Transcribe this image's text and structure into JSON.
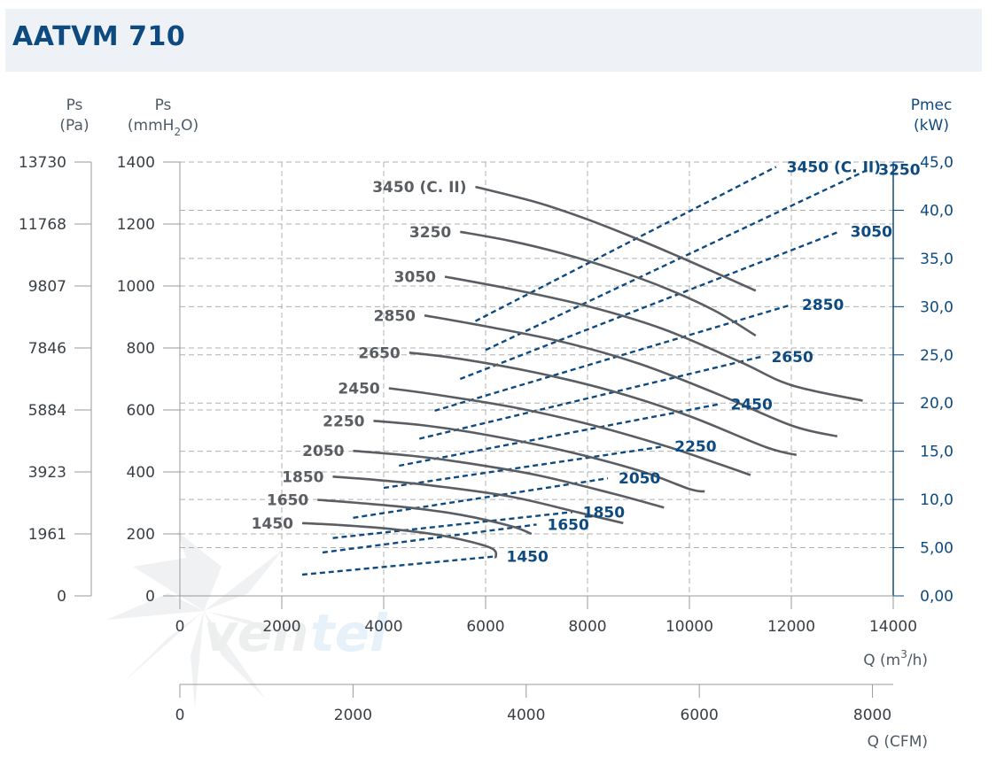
{
  "header": {
    "title": "AATVM 710"
  },
  "axes": {
    "ps_pa_label": "Ps",
    "ps_pa_unit": "(Pa)",
    "ps_mm_label": "Ps",
    "ps_mm_unit_pre": "(mmH",
    "ps_mm_unit_sub": "2",
    "ps_mm_unit_post": "O)",
    "pmec_label": "Pmec",
    "pmec_unit": "(kW)",
    "q_m3h_pre": "Q (m",
    "q_m3h_sup": "3",
    "q_m3h_post": "/h)",
    "q_cfm_label": "Q (CFM)"
  },
  "colors": {
    "title": "#0d4a80",
    "pressure_curve": "#5a5e63",
    "power_curve": "#0d4a80",
    "grid": "#aaaaaa"
  },
  "chart_data": {
    "type": "line",
    "title": "AATVM 710",
    "x_axis": {
      "label": "Q (m3/h)",
      "range": [
        0,
        14000
      ],
      "ticks": [
        "0",
        "2000",
        "4000",
        "6000",
        "8000",
        "10000",
        "12000",
        "14000"
      ]
    },
    "x_axis_cfm": {
      "label": "Q (CFM)",
      "range": [
        0,
        8240
      ],
      "ticks": [
        "0",
        "2000",
        "4000",
        "6000",
        "8000"
      ]
    },
    "y_axis_mmh2o": {
      "label": "Ps (mmH2O)",
      "range": [
        0,
        1400
      ],
      "ticks": [
        "0",
        "200",
        "400",
        "600",
        "800",
        "1000",
        "1200",
        "1400"
      ]
    },
    "y_axis_pa": {
      "label": "Ps (Pa)",
      "range": [
        0,
        13730
      ],
      "ticks": [
        "0",
        "1961",
        "3923",
        "5884",
        "7846",
        "9807",
        "11768",
        "13730"
      ]
    },
    "y_axis_kw": {
      "label": "Pmec (kW)",
      "range": [
        0,
        45
      ],
      "ticks": [
        "0,00",
        "5,00",
        "10,0",
        "15,0",
        "20,0",
        "25,0",
        "30,0",
        "35,0",
        "40,0",
        "45,0"
      ]
    },
    "grid": true,
    "pressure_series": [
      {
        "name": "3450 (C. II)",
        "points": [
          [
            5800,
            1320
          ],
          [
            7000,
            1270
          ],
          [
            8000,
            1215
          ],
          [
            9000,
            1150
          ],
          [
            10000,
            1080
          ],
          [
            11300,
            985
          ]
        ]
      },
      {
        "name": "3250",
        "points": [
          [
            5500,
            1175
          ],
          [
            6500,
            1145
          ],
          [
            7500,
            1105
          ],
          [
            8500,
            1055
          ],
          [
            9500,
            995
          ],
          [
            10500,
            920
          ],
          [
            11300,
            840
          ]
        ]
      },
      {
        "name": "3050",
        "points": [
          [
            5200,
            1030
          ],
          [
            6500,
            990
          ],
          [
            8000,
            935
          ],
          [
            9500,
            860
          ],
          [
            11000,
            755
          ],
          [
            12000,
            680
          ],
          [
            13400,
            630
          ]
        ]
      },
      {
        "name": "2850",
        "points": [
          [
            4800,
            905
          ],
          [
            6000,
            870
          ],
          [
            7500,
            820
          ],
          [
            9000,
            750
          ],
          [
            10500,
            655
          ],
          [
            12000,
            550
          ],
          [
            12900,
            515
          ]
        ]
      },
      {
        "name": "2650",
        "points": [
          [
            4500,
            785
          ],
          [
            5500,
            765
          ],
          [
            7000,
            720
          ],
          [
            8500,
            660
          ],
          [
            10000,
            580
          ],
          [
            11500,
            480
          ],
          [
            12100,
            455
          ]
        ]
      },
      {
        "name": "2450",
        "points": [
          [
            4100,
            670
          ],
          [
            5000,
            650
          ],
          [
            6500,
            610
          ],
          [
            8000,
            555
          ],
          [
            9500,
            485
          ],
          [
            10500,
            430
          ],
          [
            11200,
            390
          ]
        ]
      },
      {
        "name": "2250",
        "points": [
          [
            3800,
            565
          ],
          [
            4800,
            550
          ],
          [
            6000,
            520
          ],
          [
            7500,
            470
          ],
          [
            9000,
            405
          ],
          [
            10000,
            345
          ],
          [
            10300,
            337
          ]
        ]
      },
      {
        "name": "2050",
        "points": [
          [
            3400,
            468
          ],
          [
            4500,
            453
          ],
          [
            5500,
            432
          ],
          [
            7000,
            390
          ],
          [
            8500,
            330
          ],
          [
            9500,
            285
          ]
        ]
      },
      {
        "name": "1850",
        "points": [
          [
            3000,
            385
          ],
          [
            4000,
            372
          ],
          [
            5000,
            355
          ],
          [
            6500,
            320
          ],
          [
            7800,
            270
          ],
          [
            8700,
            235
          ]
        ]
      },
      {
        "name": "1650",
        "points": [
          [
            2700,
            310
          ],
          [
            3500,
            300
          ],
          [
            4500,
            285
          ],
          [
            5500,
            262
          ],
          [
            6500,
            225
          ],
          [
            6900,
            200
          ]
        ]
      },
      {
        "name": "1450",
        "points": [
          [
            2400,
            235
          ],
          [
            3200,
            228
          ],
          [
            4200,
            215
          ],
          [
            5200,
            193
          ],
          [
            6100,
            155
          ],
          [
            6200,
            122
          ]
        ]
      }
    ],
    "power_series": [
      {
        "name": "3450 (C. II)",
        "points": [
          [
            5800,
            28.5
          ],
          [
            11700,
            44.5
          ]
        ]
      },
      {
        "name": "3250",
        "points": [
          [
            6000,
            25.5
          ],
          [
            13500,
            44.2
          ]
        ]
      },
      {
        "name": "3050",
        "points": [
          [
            5500,
            22.5
          ],
          [
            12950,
            37.8
          ]
        ]
      },
      {
        "name": "2850",
        "points": [
          [
            5000,
            19.2
          ],
          [
            12000,
            30.2
          ]
        ]
      },
      {
        "name": "2650",
        "points": [
          [
            4700,
            16.3
          ],
          [
            11400,
            24.8
          ]
        ]
      },
      {
        "name": "2450",
        "points": [
          [
            4300,
            13.5
          ],
          [
            10600,
            19.9
          ]
        ]
      },
      {
        "name": "2250",
        "points": [
          [
            4000,
            11.2
          ],
          [
            9500,
            15.5
          ]
        ]
      },
      {
        "name": "2050",
        "points": [
          [
            3400,
            8.1
          ],
          [
            8400,
            12.2
          ]
        ]
      },
      {
        "name": "1850",
        "points": [
          [
            3000,
            6.0
          ],
          [
            7700,
            8.7
          ]
        ]
      },
      {
        "name": "1650",
        "points": [
          [
            2800,
            4.5
          ],
          [
            7000,
            7.4
          ]
        ]
      },
      {
        "name": "1450",
        "points": [
          [
            2400,
            2.2
          ],
          [
            6200,
            4.1
          ]
        ]
      }
    ],
    "pressure_labels": [
      "3450 (C. II)",
      "3250",
      "3050",
      "2850",
      "2650",
      "2450",
      "2250",
      "2050",
      "1850",
      "1650",
      "1450"
    ],
    "power_labels": [
      "3450 (C. II)",
      "3250",
      "3050",
      "2850",
      "2650",
      "2450",
      "2250",
      "2050",
      "1850",
      "1650",
      "1450"
    ]
  }
}
